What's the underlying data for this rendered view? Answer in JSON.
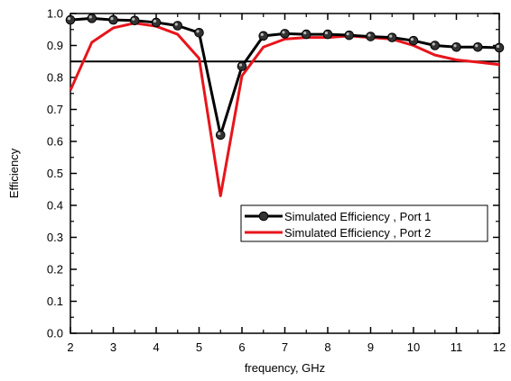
{
  "chart_data": {
    "type": "line",
    "title": "",
    "xlabel": "frequency, GHz",
    "ylabel": "Efficiency",
    "xlim": [
      2,
      12
    ],
    "ylim": [
      0.0,
      1.0
    ],
    "x_ticks": [
      "2",
      "3",
      "4",
      "5",
      "6",
      "7",
      "8",
      "9",
      "10",
      "11",
      "12"
    ],
    "y_ticks": [
      "0.0",
      "0.1",
      "0.2",
      "0.3",
      "0.4",
      "0.5",
      "0.6",
      "0.7",
      "0.8",
      "0.9",
      "1.0"
    ],
    "grid": false,
    "legend_position": "center-right",
    "reference_line": {
      "y": 0.85,
      "color": "#000000"
    },
    "series": [
      {
        "name": "Simulated Efficiency , Port 1",
        "color": "#000000",
        "marker": "circle",
        "x": [
          2,
          2.5,
          3,
          3.5,
          4,
          4.5,
          5,
          5.5,
          6,
          6.5,
          7,
          7.5,
          8,
          8.5,
          9,
          9.5,
          10,
          10.5,
          11,
          11.5,
          12
        ],
        "y": [
          0.98,
          0.985,
          0.98,
          0.978,
          0.972,
          0.962,
          0.94,
          0.62,
          0.835,
          0.93,
          0.937,
          0.935,
          0.935,
          0.932,
          0.928,
          0.925,
          0.915,
          0.9,
          0.895,
          0.895,
          0.893
        ]
      },
      {
        "name": "Simulated Efficiency , Port 2",
        "color": "#e8141b",
        "marker": "none",
        "x": [
          2,
          2.5,
          3,
          3.5,
          4,
          4.5,
          5,
          5.5,
          6,
          6.5,
          7,
          7.5,
          8,
          8.5,
          9,
          9.5,
          10,
          10.5,
          11,
          11.5,
          12
        ],
        "y": [
          0.76,
          0.91,
          0.955,
          0.97,
          0.96,
          0.935,
          0.86,
          0.43,
          0.805,
          0.895,
          0.92,
          0.925,
          0.925,
          0.93,
          0.925,
          0.92,
          0.9,
          0.87,
          0.855,
          0.848,
          0.84
        ]
      }
    ]
  }
}
